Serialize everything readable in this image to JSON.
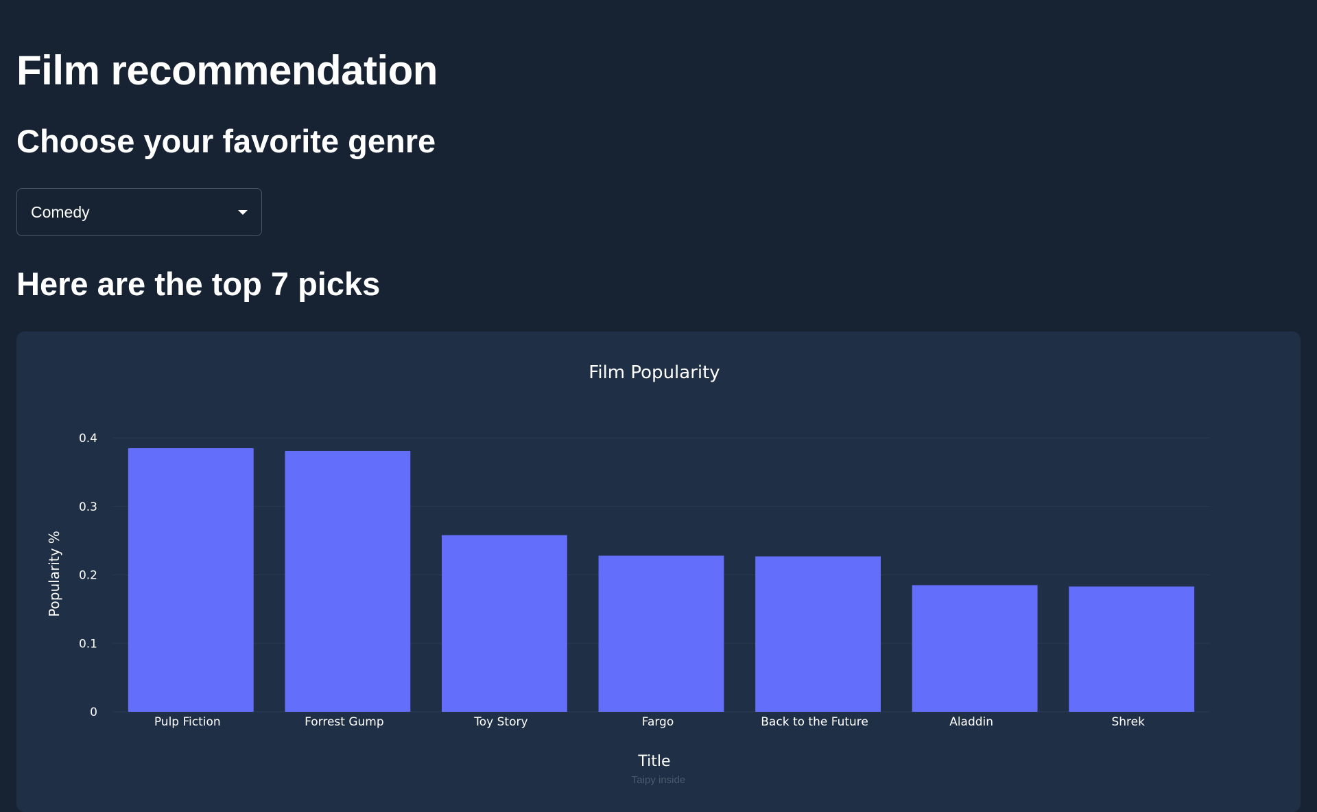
{
  "page": {
    "title": "Film recommendation",
    "genre_prompt": "Choose your favorite genre",
    "picks_heading": "Here are the top 7 picks",
    "footer": "Taipy inside"
  },
  "genre_select": {
    "value": "Comedy"
  },
  "colors": {
    "bar": "#636efa",
    "background": "#172233",
    "card": "#1f2f45"
  },
  "chart_data": {
    "type": "bar",
    "title": "Film Popularity",
    "xlabel": "Title",
    "ylabel": "Popularity %",
    "categories": [
      "Pulp Fiction",
      "Forrest Gump",
      "Toy Story",
      "Fargo",
      "Back to the Future",
      "Aladdin",
      "Shrek"
    ],
    "values": [
      0.385,
      0.381,
      0.258,
      0.228,
      0.227,
      0.185,
      0.183
    ],
    "ylim": [
      0,
      0.4
    ],
    "yticks": [
      "0",
      "0.1",
      "0.2",
      "0.3",
      "0.4"
    ],
    "grid": true,
    "legend": "none"
  }
}
